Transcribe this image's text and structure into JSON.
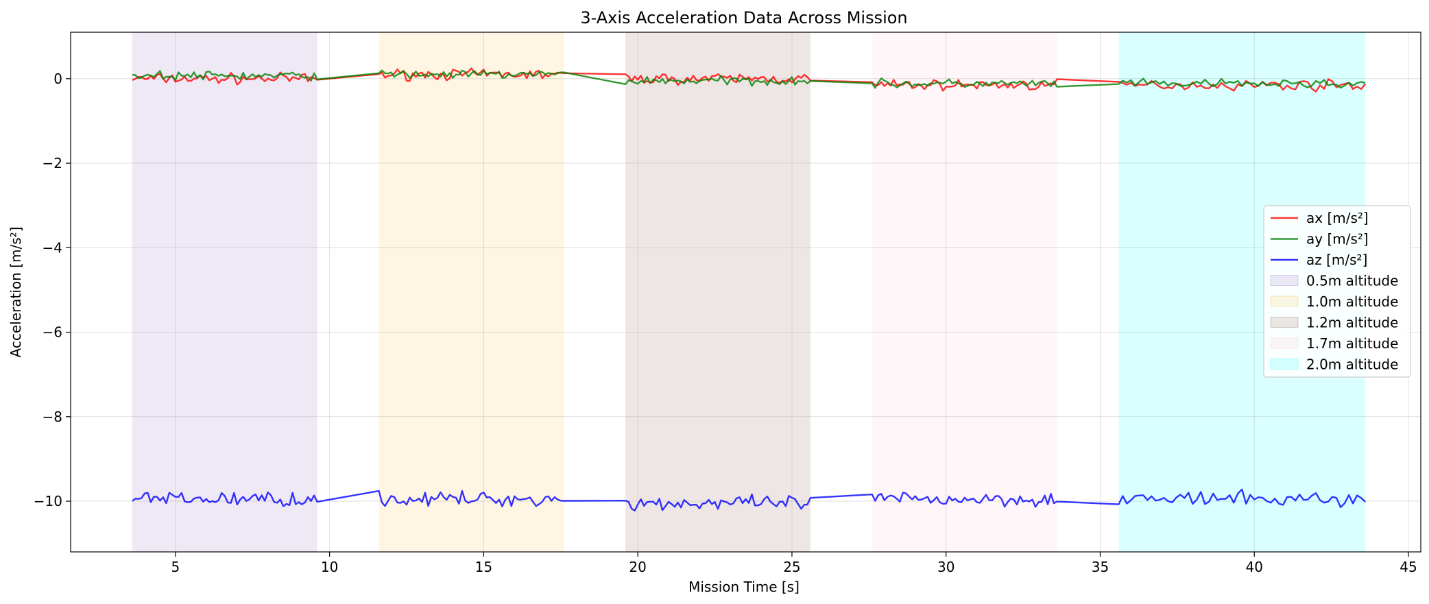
{
  "chart_data": {
    "type": "line",
    "title": "3-Axis Acceleration Data Across Mission",
    "xlabel": "Mission Time [s]",
    "ylabel": "Acceleration [m/s²]",
    "xlim": [
      1.6,
      45.4
    ],
    "ylim": [
      -11.2,
      1.1
    ],
    "xticks": [
      5,
      10,
      15,
      20,
      25,
      30,
      35,
      40,
      45
    ],
    "yticks": [
      0,
      -2,
      -4,
      -6,
      -8,
      -10
    ],
    "xtick_labels": [
      "5",
      "10",
      "15",
      "20",
      "25",
      "30",
      "35",
      "40",
      "45"
    ],
    "ytick_labels": [
      "0",
      "−2",
      "−4",
      "−6",
      "−8",
      "−10"
    ],
    "grid": true,
    "legend_position": "center-right",
    "bands": [
      {
        "name": "0.5m altitude",
        "x": [
          3.6,
          9.6
        ],
        "color": "#9467bd"
      },
      {
        "name": "1.0m altitude",
        "x": [
          11.6,
          17.6
        ],
        "color": "#f5b942"
      },
      {
        "name": "1.2m altitude",
        "x": [
          19.6,
          25.6
        ],
        "color": "#8c564b"
      },
      {
        "name": "1.7m altitude",
        "x": [
          27.6,
          33.6
        ],
        "color": "#f7b6c2"
      },
      {
        "name": "2.0m altitude",
        "x": [
          35.6,
          43.6
        ],
        "color": "#00ffff"
      }
    ],
    "series": [
      {
        "name": "ax [m/s²]",
        "color": "#ff0000",
        "mean": 0.0,
        "amp": 0.18,
        "segments": [
          {
            "x0": 3.6,
            "x1": 9.6,
            "mean": 0.0
          },
          {
            "x0": 11.6,
            "x1": 17.6,
            "mean": 0.1
          },
          {
            "x0": 19.6,
            "x1": 25.6,
            "mean": 0.0
          },
          {
            "x0": 27.6,
            "x1": 33.6,
            "mean": -0.15
          },
          {
            "x0": 35.6,
            "x1": 43.6,
            "mean": -0.15
          }
        ]
      },
      {
        "name": "ay [m/s²]",
        "color": "#008000",
        "mean": 0.05,
        "amp": 0.15,
        "segments": [
          {
            "x0": 3.6,
            "x1": 9.6,
            "mean": 0.07
          },
          {
            "x0": 11.6,
            "x1": 17.6,
            "mean": 0.1
          },
          {
            "x0": 19.6,
            "x1": 25.6,
            "mean": -0.05
          },
          {
            "x0": 27.6,
            "x1": 33.6,
            "mean": -0.12
          },
          {
            "x0": 35.6,
            "x1": 43.6,
            "mean": -0.12
          }
        ]
      },
      {
        "name": "az [m/s²]",
        "color": "#0000ff",
        "mean": -9.95,
        "amp": 0.25,
        "segments": [
          {
            "x0": 3.6,
            "x1": 9.6,
            "mean": -9.95
          },
          {
            "x0": 11.6,
            "x1": 17.6,
            "mean": -9.95
          },
          {
            "x0": 19.6,
            "x1": 25.6,
            "mean": -10.05
          },
          {
            "x0": 27.6,
            "x1": 33.6,
            "mean": -9.95
          },
          {
            "x0": 35.6,
            "x1": 43.6,
            "mean": -9.95
          }
        ]
      }
    ]
  }
}
